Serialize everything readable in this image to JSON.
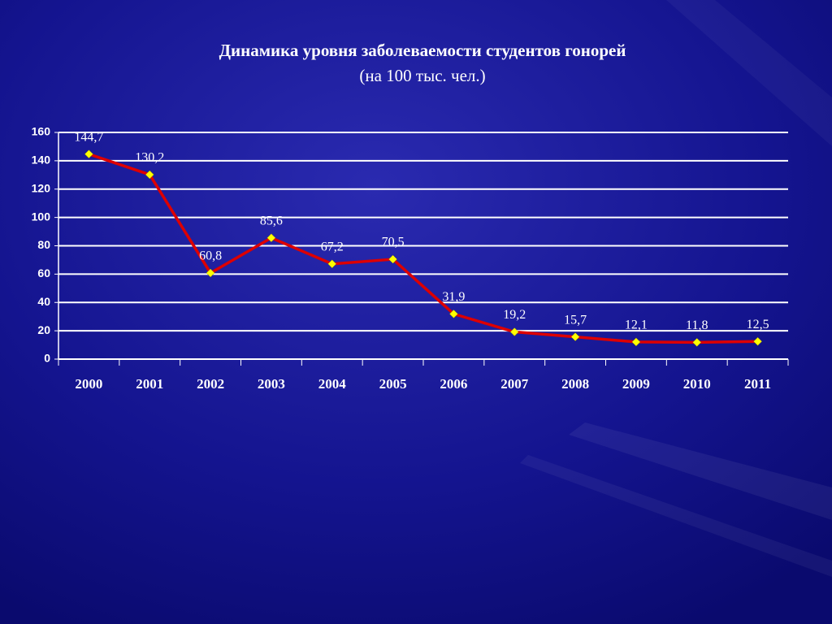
{
  "chart_data": {
    "type": "line",
    "title": "Динамика уровня заболеваемости студентов гонорей",
    "subtitle": "(на 100 тыс. чел.)",
    "categories": [
      "2000",
      "2001",
      "2002",
      "2003",
      "2004",
      "2005",
      "2006",
      "2007",
      "2008",
      "2009",
      "2010",
      "2011"
    ],
    "series": [
      {
        "color": "#dd0000",
        "marker_color": "#ffff00",
        "values": [
          144.7,
          130.2,
          60.8,
          85.6,
          67.2,
          70.5,
          31.9,
          19.2,
          15.7,
          12.1,
          11.8,
          12.5
        ],
        "value_labels": [
          "144,7",
          "130,2",
          "60,8",
          "85,6",
          "67,2",
          "70,5",
          "31,9",
          "19,2",
          "15,7",
          "12,1",
          "11,8",
          "12,5"
        ]
      }
    ],
    "ylim": [
      0,
      160
    ],
    "yticks": [
      0,
      20,
      40,
      60,
      80,
      100,
      120,
      140,
      160
    ],
    "grid": true
  }
}
